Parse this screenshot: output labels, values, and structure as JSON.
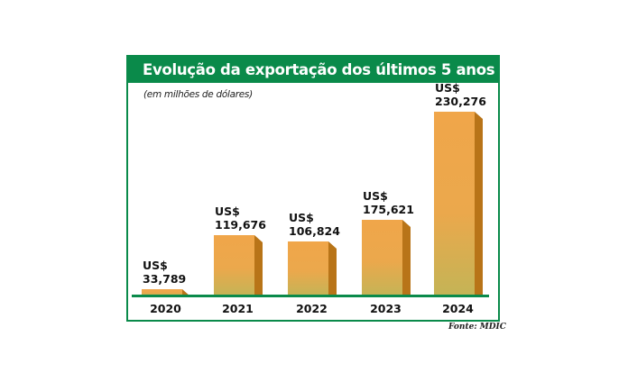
{
  "chart_data": {
    "type": "bar",
    "title": "Evolução da exportação dos últimos 5 anos",
    "subtitle": "(em milhões de dólares)",
    "categories": [
      "2020",
      "2021",
      "2022",
      "2023",
      "2024"
    ],
    "value_prefix": "US$",
    "values": [
      33.789,
      119.676,
      106.824,
      175.621,
      230.276
    ],
    "value_labels": [
      "33,789",
      "119,676",
      "106,824",
      "175,621",
      "230,276"
    ],
    "source": "Fonte: MDIC",
    "grid": false,
    "colors": {
      "frame": "#0a8a4a",
      "bar_top": "#f0a64a",
      "bar_bottom": "#c4b456",
      "bar_side": "#b87418",
      "baseline": "#0a8a4a"
    }
  }
}
